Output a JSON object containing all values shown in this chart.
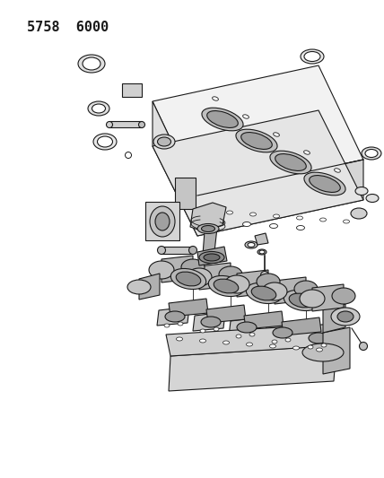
{
  "title_text": "5758  6000",
  "title_fontsize": 11,
  "title_fontfamily": "monospace",
  "title_fontweight": "bold",
  "bg_color": "#ffffff",
  "line_color": "#1a1a1a",
  "line_width": 0.8,
  "fig_width": 4.28,
  "fig_height": 5.33,
  "dpi": 100
}
